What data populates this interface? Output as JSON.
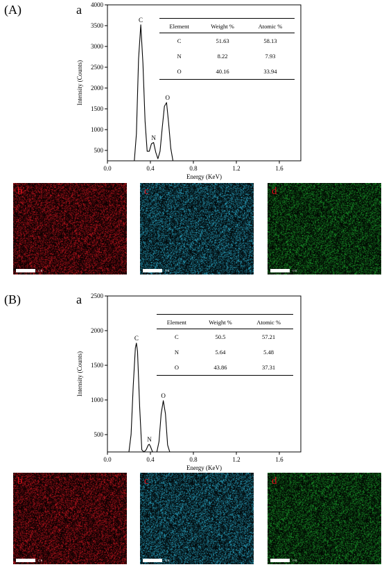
{
  "panels": [
    {
      "id": "A",
      "label": "(A)",
      "sub_label": "a",
      "maps": [
        {
          "letter": "b",
          "color": "#c8141e",
          "scale_text": "C K"
        },
        {
          "letter": "c",
          "color": "#2aa8c8",
          "scale_text": "N K"
        },
        {
          "letter": "d",
          "color": "#1a9a2a",
          "scale_text": "O K"
        }
      ],
      "table": {
        "headers": [
          "Element",
          "Weight %",
          "Atomic %"
        ],
        "rows": [
          [
            "C",
            "51.63",
            "58.13"
          ],
          [
            "N",
            "8.22",
            "7.93"
          ],
          [
            "O",
            "40.16",
            "33.94"
          ]
        ]
      }
    },
    {
      "id": "B",
      "label": "(B)",
      "sub_label": "a",
      "maps": [
        {
          "letter": "b",
          "color": "#c8141e",
          "scale_text": "C K"
        },
        {
          "letter": "c",
          "color": "#2aa8c8",
          "scale_text": "N K"
        },
        {
          "letter": "d",
          "color": "#1a9a2a",
          "scale_text": "O K"
        }
      ],
      "table": {
        "headers": [
          "Element",
          "Weight %",
          "Atomic %"
        ],
        "rows": [
          [
            "C",
            "50.5",
            "57.21"
          ],
          [
            "N",
            "5.64",
            "5.48"
          ],
          [
            "O",
            "43.86",
            "37.31"
          ]
        ]
      }
    }
  ],
  "chart_data": [
    {
      "type": "line",
      "xlabel": "Energy (KeV)",
      "ylabel": "Intensity (Counts)",
      "xlim": [
        0.0,
        1.8
      ],
      "ylim": [
        250,
        4000
      ],
      "xticks": [
        "0.0",
        "0.4",
        "0.8",
        "1.2",
        "1.6"
      ],
      "yticks": [
        "500",
        "1000",
        "1500",
        "2000",
        "2500",
        "3000",
        "3500",
        "4000"
      ],
      "grid": false,
      "peaks": [
        {
          "label": "C",
          "x": 0.31,
          "y": 3520
        },
        {
          "label": "N",
          "x": 0.43,
          "y": 680
        },
        {
          "label": "O",
          "x": 0.56,
          "y": 1650
        }
      ],
      "x": [
        0.25,
        0.27,
        0.29,
        0.31,
        0.33,
        0.35,
        0.37,
        0.39,
        0.41,
        0.43,
        0.45,
        0.47,
        0.49,
        0.51,
        0.53,
        0.55,
        0.57,
        0.59,
        0.61
      ],
      "y": [
        250,
        900,
        2700,
        3520,
        2600,
        1200,
        480,
        480,
        660,
        690,
        450,
        300,
        480,
        1050,
        1560,
        1650,
        1150,
        550,
        250
      ]
    },
    {
      "type": "line",
      "xlabel": "Energy (KeV)",
      "ylabel": "Intensity (Counts)",
      "xlim": [
        0.0,
        1.8
      ],
      "ylim": [
        250,
        2500
      ],
      "xticks": [
        "0.0",
        "0.4",
        "0.8",
        "1.2",
        "1.6"
      ],
      "yticks": [
        "500",
        "1000",
        "1500",
        "2000",
        "2500"
      ],
      "grid": false,
      "peaks": [
        {
          "label": "C",
          "x": 0.27,
          "y": 1820
        },
        {
          "label": "N",
          "x": 0.39,
          "y": 360
        },
        {
          "label": "O",
          "x": 0.52,
          "y": 990
        }
      ],
      "x": [
        0.2,
        0.22,
        0.24,
        0.26,
        0.27,
        0.28,
        0.3,
        0.32,
        0.34,
        0.36,
        0.38,
        0.39,
        0.4,
        0.42,
        0.44,
        0.46,
        0.48,
        0.5,
        0.52,
        0.54,
        0.56,
        0.58
      ],
      "y": [
        250,
        500,
        1200,
        1750,
        1820,
        1700,
        900,
        280,
        250,
        280,
        350,
        360,
        330,
        250,
        250,
        250,
        400,
        800,
        990,
        800,
        350,
        250
      ]
    }
  ]
}
